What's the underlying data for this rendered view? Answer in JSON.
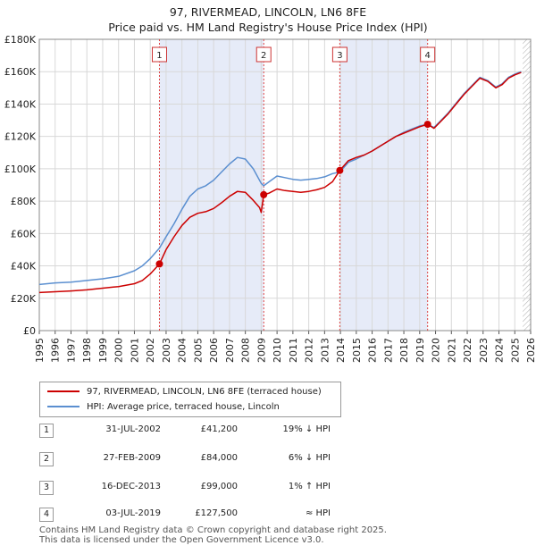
{
  "title": "97, RIVERMEAD, LINCOLN, LN6 8FE",
  "subtitle": "Price paid vs. HM Land Registry's House Price Index (HPI)",
  "chart_data": {
    "type": "line",
    "title": "97, RIVERMEAD, LINCOLN, LN6 8FE",
    "subtitle": "Price paid vs. HM Land Registry's House Price Index (HPI)",
    "xlim": [
      1995,
      2026
    ],
    "ylim": [
      0,
      180000
    ],
    "x_ticks": [
      "1995",
      "1996",
      "1997",
      "1998",
      "1999",
      "2000",
      "2001",
      "2002",
      "2003",
      "2004",
      "2005",
      "2006",
      "2007",
      "2008",
      "2009",
      "2010",
      "2011",
      "2012",
      "2013",
      "2014",
      "2015",
      "2016",
      "2017",
      "2018",
      "2019",
      "2020",
      "2021",
      "2022",
      "2023",
      "2024",
      "2025",
      "2026"
    ],
    "y_ticks": [
      {
        "value": 0,
        "label": "£0"
      },
      {
        "value": 20000,
        "label": "£20K"
      },
      {
        "value": 40000,
        "label": "£40K"
      },
      {
        "value": 60000,
        "label": "£60K"
      },
      {
        "value": 80000,
        "label": "£80K"
      },
      {
        "value": 100000,
        "label": "£100K"
      },
      {
        "value": 120000,
        "label": "£120K"
      },
      {
        "value": 140000,
        "label": "£140K"
      },
      {
        "value": 160000,
        "label": "£160K"
      },
      {
        "value": 180000,
        "label": "£180K"
      }
    ],
    "grid": true,
    "shaded_periods": [
      [
        2002.58,
        2009.16
      ],
      [
        2013.96,
        2019.5
      ]
    ],
    "future_hatch_start": 2025.5,
    "series": [
      {
        "name": "97, RIVERMEAD, LINCOLN, LN6 8FE (terraced house)",
        "color": "#cc0000",
        "points": [
          [
            1995.0,
            23500
          ],
          [
            1996.0,
            24000
          ],
          [
            1997.0,
            24500
          ],
          [
            1998.0,
            25200
          ],
          [
            1999.0,
            26200
          ],
          [
            2000.0,
            27200
          ],
          [
            2001.0,
            29000
          ],
          [
            2001.5,
            31000
          ],
          [
            2002.0,
            35000
          ],
          [
            2002.58,
            41200
          ],
          [
            2003.0,
            50000
          ],
          [
            2003.5,
            58000
          ],
          [
            2004.0,
            65000
          ],
          [
            2004.5,
            70000
          ],
          [
            2005.0,
            72500
          ],
          [
            2005.5,
            73500
          ],
          [
            2006.0,
            75500
          ],
          [
            2006.5,
            79000
          ],
          [
            2007.0,
            83000
          ],
          [
            2007.5,
            86000
          ],
          [
            2008.0,
            85500
          ],
          [
            2008.5,
            80500
          ],
          [
            2008.9,
            76000
          ],
          [
            2009.0,
            73000
          ],
          [
            2009.16,
            84000
          ],
          [
            2009.5,
            85000
          ],
          [
            2010.0,
            87500
          ],
          [
            2010.5,
            86500
          ],
          [
            2011.0,
            86000
          ],
          [
            2011.5,
            85500
          ],
          [
            2012.0,
            86000
          ],
          [
            2012.5,
            87000
          ],
          [
            2013.0,
            88500
          ],
          [
            2013.5,
            92000
          ],
          [
            2013.96,
            99000
          ],
          [
            2014.5,
            105000
          ],
          [
            2015.0,
            107000
          ],
          [
            2015.5,
            108500
          ],
          [
            2016.0,
            111000
          ],
          [
            2016.5,
            114000
          ],
          [
            2017.0,
            117000
          ],
          [
            2017.5,
            120000
          ],
          [
            2018.0,
            122000
          ],
          [
            2018.5,
            124000
          ],
          [
            2019.0,
            126000
          ],
          [
            2019.5,
            127500
          ],
          [
            2019.9,
            125000
          ],
          [
            2020.3,
            129000
          ],
          [
            2020.8,
            134000
          ],
          [
            2021.3,
            140000
          ],
          [
            2021.8,
            146000
          ],
          [
            2022.3,
            151000
          ],
          [
            2022.8,
            156000
          ],
          [
            2023.3,
            154000
          ],
          [
            2023.8,
            150000
          ],
          [
            2024.2,
            152000
          ],
          [
            2024.6,
            156000
          ],
          [
            2025.0,
            158000
          ],
          [
            2025.4,
            159500
          ]
        ]
      },
      {
        "name": "HPI: Average price, terraced house, Lincoln",
        "color": "#5b8fd0",
        "points": [
          [
            1995.0,
            28500
          ],
          [
            1996.0,
            29500
          ],
          [
            1997.0,
            30000
          ],
          [
            1998.0,
            31000
          ],
          [
            1999.0,
            32000
          ],
          [
            2000.0,
            33500
          ],
          [
            2001.0,
            37000
          ],
          [
            2001.5,
            40000
          ],
          [
            2002.0,
            44500
          ],
          [
            2002.58,
            51000
          ],
          [
            2003.0,
            58000
          ],
          [
            2003.5,
            66000
          ],
          [
            2004.0,
            75000
          ],
          [
            2004.5,
            83000
          ],
          [
            2005.0,
            87500
          ],
          [
            2005.5,
            89500
          ],
          [
            2006.0,
            93000
          ],
          [
            2006.5,
            98000
          ],
          [
            2007.0,
            103000
          ],
          [
            2007.5,
            107000
          ],
          [
            2008.0,
            106000
          ],
          [
            2008.5,
            100000
          ],
          [
            2009.0,
            91000
          ],
          [
            2009.16,
            89500
          ],
          [
            2009.5,
            92000
          ],
          [
            2010.0,
            95500
          ],
          [
            2010.5,
            94500
          ],
          [
            2011.0,
            93500
          ],
          [
            2011.5,
            93000
          ],
          [
            2012.0,
            93500
          ],
          [
            2012.5,
            94000
          ],
          [
            2013.0,
            95000
          ],
          [
            2013.5,
            97000
          ],
          [
            2013.96,
            98000
          ],
          [
            2014.5,
            104000
          ],
          [
            2015.0,
            106000
          ],
          [
            2015.5,
            108500
          ],
          [
            2016.0,
            111000
          ],
          [
            2016.5,
            114000
          ],
          [
            2017.0,
            117000
          ],
          [
            2017.5,
            120000
          ],
          [
            2018.0,
            122500
          ],
          [
            2018.5,
            124500
          ],
          [
            2019.0,
            126500
          ],
          [
            2019.5,
            127500
          ],
          [
            2019.9,
            125500
          ],
          [
            2020.3,
            129500
          ],
          [
            2020.8,
            134500
          ],
          [
            2021.3,
            140500
          ],
          [
            2021.8,
            146500
          ],
          [
            2022.3,
            151500
          ],
          [
            2022.8,
            156500
          ],
          [
            2023.3,
            154500
          ],
          [
            2023.8,
            150500
          ],
          [
            2024.2,
            152500
          ],
          [
            2024.6,
            156500
          ],
          [
            2025.0,
            158500
          ],
          [
            2025.4,
            160000
          ]
        ]
      }
    ],
    "markers": [
      {
        "label": "1",
        "x": 2002.58,
        "y": 41200
      },
      {
        "label": "2",
        "x": 2009.16,
        "y": 84000
      },
      {
        "label": "3",
        "x": 2013.96,
        "y": 99000
      },
      {
        "label": "4",
        "x": 2019.5,
        "y": 127500
      }
    ]
  },
  "legend": {
    "items": [
      {
        "label": "97, RIVERMEAD, LINCOLN, LN6 8FE (terraced house)",
        "color": "#cc0000"
      },
      {
        "label": "HPI: Average price, terraced house, Lincoln",
        "color": "#5b8fd0"
      }
    ]
  },
  "transactions": [
    {
      "num": "1",
      "date": "31-JUL-2002",
      "price": "£41,200",
      "diff": "19% ↓ HPI"
    },
    {
      "num": "2",
      "date": "27-FEB-2009",
      "price": "£84,000",
      "diff": "6% ↓ HPI"
    },
    {
      "num": "3",
      "date": "16-DEC-2013",
      "price": "£99,000",
      "diff": "1% ↑ HPI"
    },
    {
      "num": "4",
      "date": "03-JUL-2019",
      "price": "£127,500",
      "diff": "≈ HPI"
    }
  ],
  "footer": {
    "line1": "Contains HM Land Registry data © Crown copyright and database right 2025.",
    "line2": "This data is licensed under the Open Government Licence v3.0."
  }
}
